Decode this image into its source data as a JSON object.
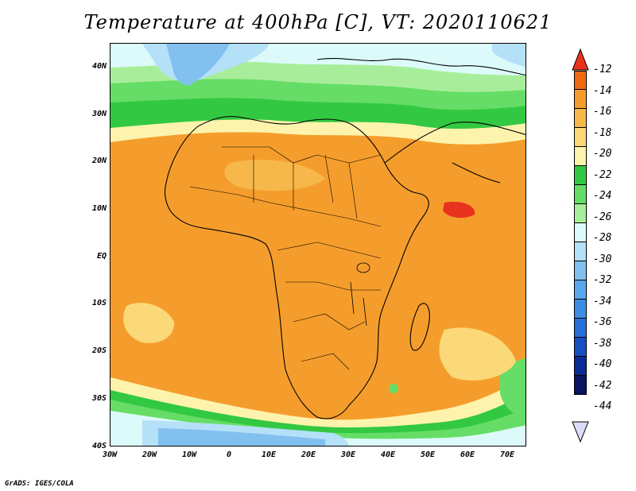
{
  "title": "Temperature at 400hPa [C], VT: 2020110621",
  "footer": "GrADS: IGES/COLA",
  "y_labels": [
    "40N",
    "30N",
    "20N",
    "10N",
    "EQ",
    "10S",
    "20S",
    "30S",
    "40S"
  ],
  "x_labels": [
    "30W",
    "20W",
    "10W",
    "0",
    "10E",
    "20E",
    "30E",
    "40E",
    "50E",
    "60E",
    "70E"
  ],
  "colorbar": {
    "labels": [
      "-12",
      "-14",
      "-16",
      "-18",
      "-20",
      "-22",
      "-24",
      "-26",
      "-28",
      "-30",
      "-32",
      "-34",
      "-36",
      "-38",
      "-40",
      "-42",
      "-44"
    ],
    "colors": [
      "#e8321e",
      "#f06a14",
      "#f59d2c",
      "#f7b84b",
      "#fbd878",
      "#fdf3ad",
      "#33c842",
      "#66dd66",
      "#a8ee9a",
      "#dcfafa",
      "#b4e0f8",
      "#82c0f0",
      "#5aa8ec",
      "#3c8ee4",
      "#2570d8",
      "#1450c0",
      "#0a2a96",
      "#0a1464"
    ],
    "top_arrow_color": "#e8321e",
    "bottom_arrow_color": "#dcdcfa"
  },
  "map_colors": {
    "orange_deep": "#f59d2c",
    "orange": "#f7b84b",
    "yellow": "#fbd878",
    "pale": "#fdf3ad",
    "green_dark": "#33c842",
    "green": "#66dd66",
    "green_light": "#a8ee9a",
    "cyan": "#dcfafa",
    "blue_light": "#b4e0f8",
    "blue": "#82c0f0",
    "blue_mid": "#5aa8ec",
    "red": "#e8321e"
  }
}
